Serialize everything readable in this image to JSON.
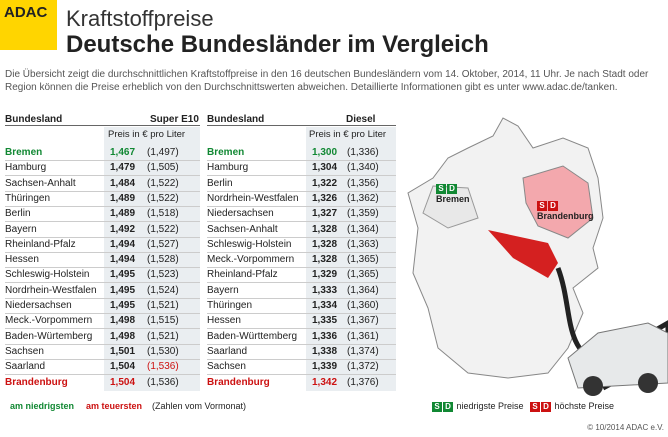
{
  "header": {
    "logo": "ADAC",
    "title": "Kraftstoffpreise",
    "subtitle": "Deutsche Bundesländer im Vergleich"
  },
  "intro": "Die Übersicht zeigt die durchschnittlichen Kraftstoffpreise in den 16 deutschen Bundesländern vom 14. Oktober, 2014, 11 Uhr. Je nach Stadt oder Region können die Preise erheblich von den Durchschnittswerten abweichen. Detaillierte Informationen gibt es unter www.adac.de/tanken.",
  "table_super": {
    "col_region": "Bundesland",
    "col_fuel": "Super E10",
    "unit": "Preis in € pro Liter",
    "rows": [
      [
        "Bremen",
        "1,467",
        "(1,497)"
      ],
      [
        "Hamburg",
        "1,479",
        "(1,505)"
      ],
      [
        "Sachsen-Anhalt",
        "1,484",
        "(1,522)"
      ],
      [
        "Thüringen",
        "1,489",
        "(1,522)"
      ],
      [
        "Berlin",
        "1,489",
        "(1,518)"
      ],
      [
        "Bayern",
        "1,492",
        "(1,522)"
      ],
      [
        "Rheinland-Pfalz",
        "1,494",
        "(1,527)"
      ],
      [
        "Hessen",
        "1,494",
        "(1,528)"
      ],
      [
        "Schleswig-Holstein",
        "1,495",
        "(1,523)"
      ],
      [
        "Nordrhein-Westfalen",
        "1,495",
        "(1,524)"
      ],
      [
        "Niedersachsen",
        "1,495",
        "(1,521)"
      ],
      [
        "Meck.-Vorpommern",
        "1,498",
        "(1,515)"
      ],
      [
        "Baden-Würtemberg",
        "1,498",
        "(1,521)"
      ],
      [
        "Sachsen",
        "1,501",
        "(1,530)"
      ],
      [
        "Saarland",
        "1,504",
        "(1,536)"
      ],
      [
        "Brandenburg",
        "1,504",
        "(1,536)"
      ]
    ]
  },
  "table_diesel": {
    "col_region": "Bundesland",
    "col_fuel": "Diesel",
    "unit": "Preis in € pro Liter",
    "rows": [
      [
        "Bremen",
        "1,300",
        "(1,336)"
      ],
      [
        "Hamburg",
        "1,304",
        "(1,340)"
      ],
      [
        "Berlin",
        "1,322",
        "(1,356)"
      ],
      [
        "Nordrhein-Westfalen",
        "1,326",
        "(1,362)"
      ],
      [
        "Niedersachsen",
        "1,327",
        "(1,359)"
      ],
      [
        "Sachsen-Anhalt",
        "1,328",
        "(1,364)"
      ],
      [
        "Schleswig-Holstein",
        "1,328",
        "(1,363)"
      ],
      [
        "Meck.-Vorpommern",
        "1,328",
        "(1,365)"
      ],
      [
        "Rheinland-Pfalz",
        "1,329",
        "(1,365)"
      ],
      [
        "Bayern",
        "1,333",
        "(1,364)"
      ],
      [
        "Thüringen",
        "1,334",
        "(1,360)"
      ],
      [
        "Hessen",
        "1,335",
        "(1,367)"
      ],
      [
        "Baden-Württemberg",
        "1,336",
        "(1,361)"
      ],
      [
        "Saarland",
        "1,338",
        "(1,374)"
      ],
      [
        "Sachsen",
        "1,339",
        "(1,372)"
      ],
      [
        "Brandenburg",
        "1,342",
        "(1,376)"
      ]
    ]
  },
  "footer": {
    "lowest": "am niedrigsten",
    "highest": "am teuersten",
    "note": "(Zahlen vom Vormonat)",
    "credit": "© 10/2014 ADAC e.V."
  },
  "map": {
    "badge_s": "S",
    "badge_d": "D",
    "low_region": "Bremen",
    "high_region": "Brandenburg",
    "legend_low": "niedrigste Preise",
    "legend_high": "höchste Preise"
  }
}
